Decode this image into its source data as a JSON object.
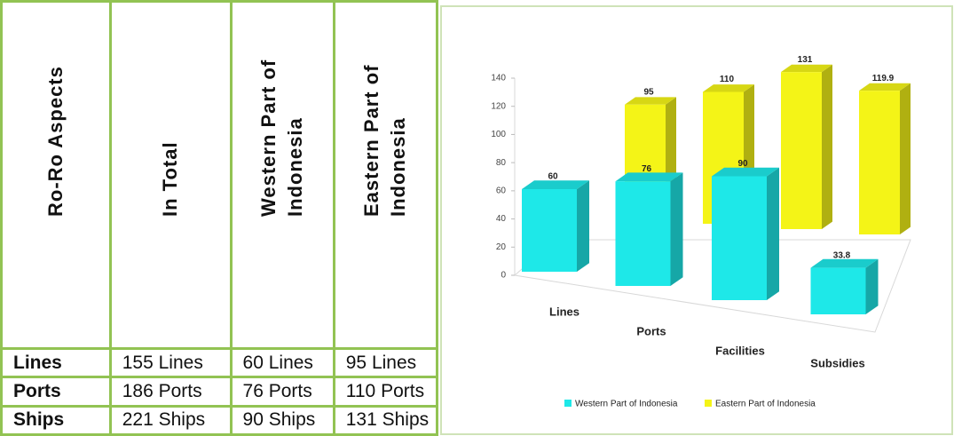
{
  "table": {
    "header": [
      "Ro-Ro Aspects",
      "In Total",
      "Western Part of Indonesia",
      "Eastern Part of Indonesia"
    ],
    "rows": [
      [
        "Lines",
        "155 Lines",
        "60 Lines",
        "95 Lines"
      ],
      [
        "Ports",
        "186 Ports",
        "76 Ports",
        "110 Ports"
      ],
      [
        "Ships",
        "221 Ships",
        "90 Ships",
        "131 Ships"
      ]
    ]
  },
  "chart_data": {
    "type": "bar3d",
    "categories": [
      "Lines",
      "Ports",
      "Facilities",
      "Subsidies"
    ],
    "series": [
      {
        "name": "Western Part of Indonesia",
        "color": "#1ee8e8",
        "values": [
          60,
          76,
          90,
          33.8
        ]
      },
      {
        "name": "Eastern Part of Indonesia",
        "color": "#f4f417",
        "values": [
          95,
          110,
          131,
          119.9
        ]
      }
    ],
    "ylim": [
      0,
      140
    ],
    "yticks": [
      0,
      20,
      40,
      60,
      80,
      100,
      120,
      140
    ],
    "legend": "bottom"
  }
}
